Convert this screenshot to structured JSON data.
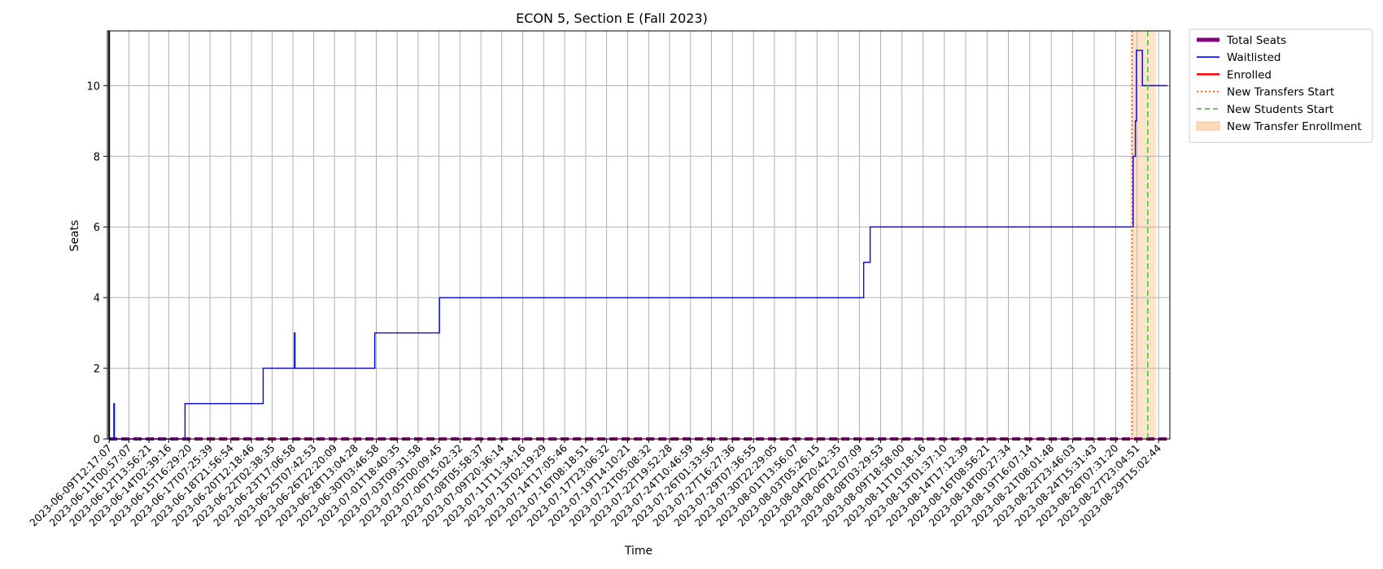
{
  "chart_data": {
    "type": "line",
    "title": "ECON 5, Section E (Fall 2023)",
    "xlabel": "Time",
    "ylabel": "Seats",
    "ylim": [
      0,
      11.55
    ],
    "xlim": [
      "2023-06-09T09:00:00",
      "2023-08-30T12:00:00"
    ],
    "yticks": [
      0,
      2,
      4,
      6,
      8,
      10
    ],
    "grid": true,
    "legend_position": "outside-top-right",
    "xtick_labels": [
      "2023-06-09T12:17:07",
      "2023-06-11T00:57:07",
      "2023-06-12T13:56:21",
      "2023-06-14T02:39:16",
      "2023-06-15T16:29:20",
      "2023-06-17T07:25:39",
      "2023-06-18T21:56:54",
      "2023-06-20T12:18:46",
      "2023-06-22T02:38:35",
      "2023-06-23T17:06:58",
      "2023-06-25T07:42:53",
      "2023-06-26T22:20:09",
      "2023-06-28T13:04:28",
      "2023-06-30T03:46:58",
      "2023-07-01T18:40:35",
      "2023-07-03T09:31:58",
      "2023-07-05T00:09:45",
      "2023-07-06T15:02:32",
      "2023-07-08T05:58:37",
      "2023-07-09T20:36:14",
      "2023-07-11T11:34:16",
      "2023-07-13T02:19:29",
      "2023-07-14T17:05:46",
      "2023-07-16T08:18:51",
      "2023-07-17T23:06:32",
      "2023-07-19T14:10:21",
      "2023-07-21T05:08:32",
      "2023-07-22T19:52:28",
      "2023-07-24T10:46:59",
      "2023-07-26T01:33:56",
      "2023-07-27T16:27:36",
      "2023-07-29T07:36:55",
      "2023-07-30T22:29:05",
      "2023-08-01T13:56:07",
      "2023-08-03T05:26:15",
      "2023-08-04T20:42:35",
      "2023-08-06T12:07:09",
      "2023-08-08T03:29:53",
      "2023-08-09T18:58:00",
      "2023-08-11T10:18:16",
      "2023-08-13T01:37:10",
      "2023-08-14T17:12:39",
      "2023-08-16T08:56:21",
      "2023-08-18T00:27:34",
      "2023-08-19T16:07:14",
      "2023-08-21T08:01:48",
      "2023-08-22T23:46:03",
      "2023-08-24T15:31:43",
      "2023-08-26T07:31:20",
      "2023-08-27T23:04:51",
      "2023-08-29T15:02:44"
    ],
    "series": [
      {
        "name": "Total Seats",
        "color": "#800080",
        "style": "thick-dashed",
        "x": [
          "2023-06-09T12:17:07",
          "2023-08-30T08:00:00"
        ],
        "y": [
          0,
          0
        ]
      },
      {
        "name": "Waitlisted",
        "color": "#0000ff",
        "style": "step",
        "x": [
          "2023-06-09T12:17:07",
          "2023-06-09T20:00:00",
          "2023-06-09T21:00:00",
          "2023-06-09T22:00:00",
          "2023-06-10T23:00:00",
          "2023-06-15T08:00:00",
          "2023-06-15T09:00:00",
          "2023-06-21T09:30:00",
          "2023-06-21T10:00:00",
          "2023-06-23T19:00:00",
          "2023-06-23T20:00:00",
          "2023-06-23T21:00:00",
          "2023-06-30T00:00:00",
          "2023-06-30T01:00:00",
          "2023-07-05T00:00:00",
          "2023-07-05T01:00:00",
          "2023-08-06T19:00:00",
          "2023-08-06T20:00:00",
          "2023-08-07T07:00:00",
          "2023-08-07T08:00:00",
          "2023-08-27T15:00:00",
          "2023-08-27T16:00:00",
          "2023-08-27T20:00:00",
          "2023-08-27T22:00:00",
          "2023-08-28T00:00:00",
          "2023-08-28T09:00:00",
          "2023-08-28T11:00:00",
          "2023-08-28T17:00:00",
          "2023-08-29T15:02:44",
          "2023-08-29T23:00:00",
          "2023-08-30T08:00:00"
        ],
        "y": [
          0,
          0,
          1,
          0,
          0,
          0,
          1,
          1,
          2,
          2,
          3,
          2,
          2,
          3,
          3,
          4,
          4,
          5,
          5,
          6,
          6,
          8,
          9,
          11,
          11,
          10,
          10,
          10,
          10,
          10,
          10
        ]
      },
      {
        "name": "Enrolled",
        "color": "#ff0000",
        "style": "solid",
        "x": [
          "2023-06-09T12:17:07",
          "2023-08-30T08:00:00"
        ],
        "y": [
          0,
          0
        ]
      }
    ],
    "markers": [
      {
        "name": "New Transfers Start",
        "color": "#ff4500",
        "style": "dotted",
        "x": "2023-08-27T14:00:00"
      },
      {
        "name": "New Students Start",
        "color": "#32cd32",
        "style": "dashed",
        "x": "2023-08-28T19:00:00"
      }
    ],
    "spans": [
      {
        "name": "New Transfer Enrollment",
        "color": "#ffdab9",
        "x_start": "2023-08-27T11:00:00",
        "x_end": "2023-08-29T10:00:00"
      }
    ],
    "vertical_lines": [
      {
        "color": "#000000",
        "x": "2023-06-09T12:17:07"
      }
    ]
  }
}
